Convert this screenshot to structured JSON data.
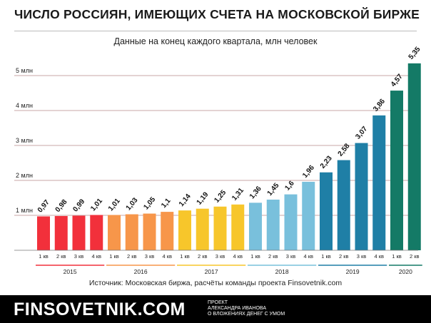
{
  "title": "ЧИСЛО РОССИЯН, ИМЕЮЩИХ СЧЕТА НА МОСКОВСКОЙ БИРЖЕ",
  "subtitle": "Данные на конец каждого квартала, млн человек",
  "source": "Источник: Московская биржа, расчёты команды проекта Finsovetnik.com",
  "footer": {
    "brand": "FINSOVETNIK.COM",
    "tagline": [
      "ПРОЕКТ",
      "АЛЕКСАНДРА ИВАНОВА",
      "О ВЛОЖЕНИЯХ ДЕНЕГ С УМОМ"
    ]
  },
  "chart_data": {
    "type": "bar",
    "title": "ЧИСЛО РОССИЯН, ИМЕЮЩИХ СЧЕТА НА МОСКОВСКОЙ БИРЖЕ",
    "subtitle": "Данные на конец каждого квартала, млн человек",
    "ylim": [
      0,
      5
    ],
    "grid": true,
    "y_ticks": [
      {
        "value": 1,
        "label": "1 млн"
      },
      {
        "value": 2,
        "label": "2 млн"
      },
      {
        "value": 3,
        "label": "3 млн"
      },
      {
        "value": 4,
        "label": "4 млн"
      },
      {
        "value": 5,
        "label": "5 млн"
      }
    ],
    "groups": [
      {
        "year": "2015",
        "color": "#f2303b",
        "quarters": [
          {
            "label": "1 кв",
            "value": 0.97,
            "value_label": "0,97"
          },
          {
            "label": "2 кв",
            "value": 0.98,
            "value_label": "0,98"
          },
          {
            "label": "3 кв",
            "value": 0.99,
            "value_label": "0,99"
          },
          {
            "label": "4 кв",
            "value": 1.01,
            "value_label": "1,01"
          }
        ]
      },
      {
        "year": "2016",
        "color": "#f7964a",
        "quarters": [
          {
            "label": "1 кв",
            "value": 1.01,
            "value_label": "1,01"
          },
          {
            "label": "2 кв",
            "value": 1.03,
            "value_label": "1,03"
          },
          {
            "label": "3 кв",
            "value": 1.05,
            "value_label": "1,05"
          },
          {
            "label": "4 кв",
            "value": 1.1,
            "value_label": "1,1"
          }
        ]
      },
      {
        "year": "2017",
        "color": "#f7c62b",
        "quarters": [
          {
            "label": "1 кв",
            "value": 1.14,
            "value_label": "1,14"
          },
          {
            "label": "2 кв",
            "value": 1.19,
            "value_label": "1,19"
          },
          {
            "label": "3 кв",
            "value": 1.25,
            "value_label": "1,25"
          },
          {
            "label": "4 кв",
            "value": 1.31,
            "value_label": "1,31"
          }
        ]
      },
      {
        "year": "2018",
        "color": "#79c0dc",
        "quarters": [
          {
            "label": "1 кв",
            "value": 1.36,
            "value_label": "1,36"
          },
          {
            "label": "2 кв",
            "value": 1.45,
            "value_label": "1,45"
          },
          {
            "label": "3 кв",
            "value": 1.6,
            "value_label": "1,6"
          },
          {
            "label": "4 кв",
            "value": 1.96,
            "value_label": "1,96"
          }
        ]
      },
      {
        "year": "2019",
        "color": "#1f7fa6",
        "quarters": [
          {
            "label": "1 кв",
            "value": 2.23,
            "value_label": "2,23"
          },
          {
            "label": "2 кв",
            "value": 2.58,
            "value_label": "2,58"
          },
          {
            "label": "3 кв",
            "value": 3.07,
            "value_label": "3,07"
          },
          {
            "label": "4 кв",
            "value": 3.86,
            "value_label": "3,86"
          }
        ]
      },
      {
        "year": "2020",
        "color": "#147a66",
        "quarters": [
          {
            "label": "1 кв",
            "value": 4.57,
            "value_label": "4,57"
          },
          {
            "label": "2 кв",
            "value": 5.35,
            "value_label": "5,35"
          }
        ]
      }
    ]
  }
}
